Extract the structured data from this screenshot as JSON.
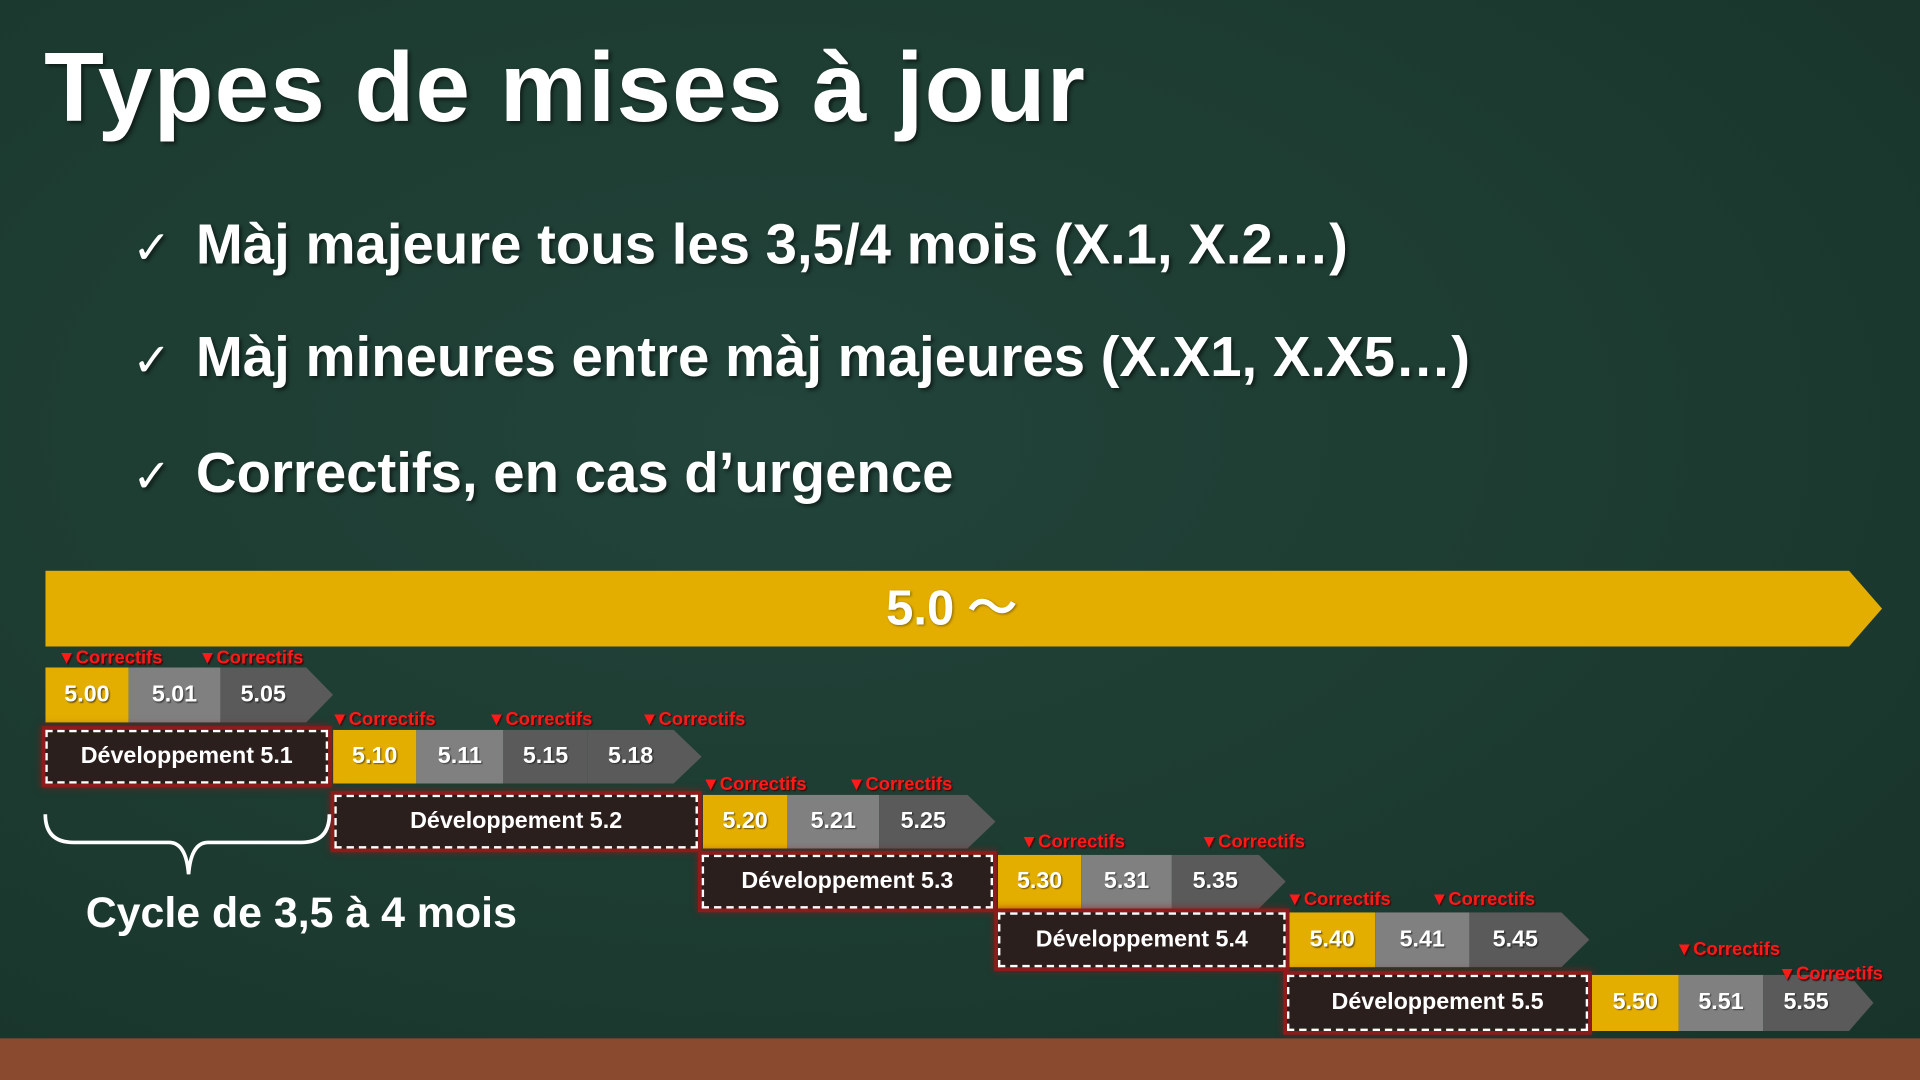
{
  "title": "Types de mises à jour",
  "bullets": [
    "Màj majeure tous les 3,5/4 mois (X.1, X.2…)",
    "Màj mineures entre màj majeures (X.X1, X.X5…)",
    "Correctifs, en cas d’urgence"
  ],
  "bullet_icon": "checkmark-icon",
  "check_glyph": "✓",
  "main_bar": "5.0 ～",
  "colors": {
    "background": "#1d3b31",
    "major": "#e3ae00",
    "minor": "#808080",
    "patch": "#5a5a5a",
    "correctifs": "#ff1a1a",
    "ground": "#8a4a2f"
  },
  "correctifs_label": "▼Correctifs",
  "rows": [
    {
      "dev": null,
      "versions": [
        "5.00",
        "5.01",
        "5.05"
      ]
    },
    {
      "dev": "Développement 5.1",
      "versions": [
        "5.10",
        "5.11",
        "5.15",
        "5.18"
      ]
    },
    {
      "dev": "Développement 5.2",
      "versions": [
        "5.20",
        "5.21",
        "5.25"
      ]
    },
    {
      "dev": "Développement 5.3",
      "versions": [
        "5.30",
        "5.31",
        "5.35"
      ]
    },
    {
      "dev": "Développement 5.4",
      "versions": [
        "5.40",
        "5.41",
        "5.45"
      ]
    },
    {
      "dev": "Développement 5.5",
      "versions": [
        "5.50",
        "5.51",
        "5.55"
      ]
    }
  ],
  "cycle_label": "Cycle de 3,5 à 4 mois"
}
